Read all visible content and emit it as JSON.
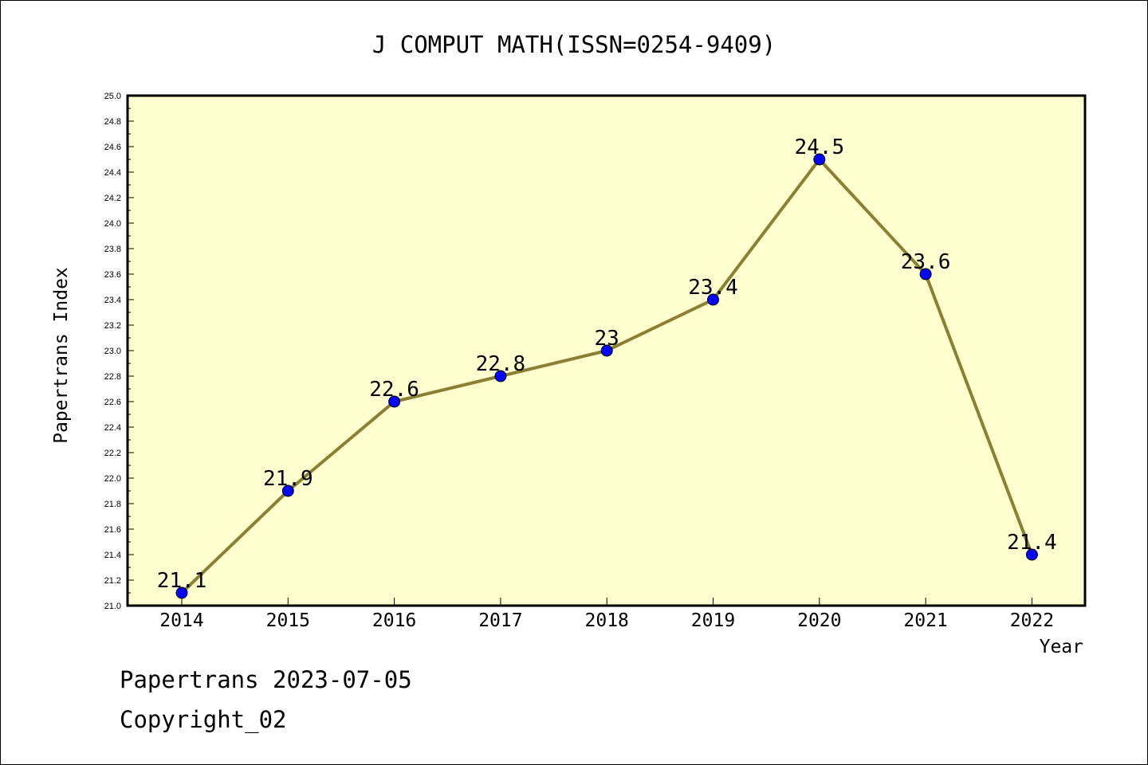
{
  "chart_data": {
    "type": "line",
    "title": "J COMPUT MATH(ISSN=0254-9409)",
    "xlabel": "Year",
    "ylabel": "Papertrans Index",
    "categories": [
      "2014",
      "2015",
      "2016",
      "2017",
      "2018",
      "2019",
      "2020",
      "2021",
      "2022"
    ],
    "values": [
      21.1,
      21.9,
      22.6,
      22.8,
      23,
      23.4,
      24.5,
      23.6,
      21.4
    ],
    "data_labels": [
      "21.1",
      "21.9",
      "22.6",
      "22.8",
      "23",
      "23.4",
      "24.5",
      "23.6",
      "21.4"
    ],
    "ylim": [
      21.0,
      25.0
    ],
    "yticks": [
      "21.0",
      "21.2",
      "21.4",
      "21.6",
      "21.8",
      "22.0",
      "22.2",
      "22.4",
      "22.6",
      "22.8",
      "23.0",
      "23.2",
      "23.4",
      "23.6",
      "23.8",
      "24.0",
      "24.2",
      "24.4",
      "24.6",
      "24.8",
      "25.0"
    ],
    "grid": false,
    "colors": {
      "plot_background": "#ffffd0",
      "line": "#8b8032",
      "marker": "#0000ff"
    }
  },
  "footer": {
    "line1": "Papertrans 2023-07-05",
    "line2": "Copyright_02"
  }
}
